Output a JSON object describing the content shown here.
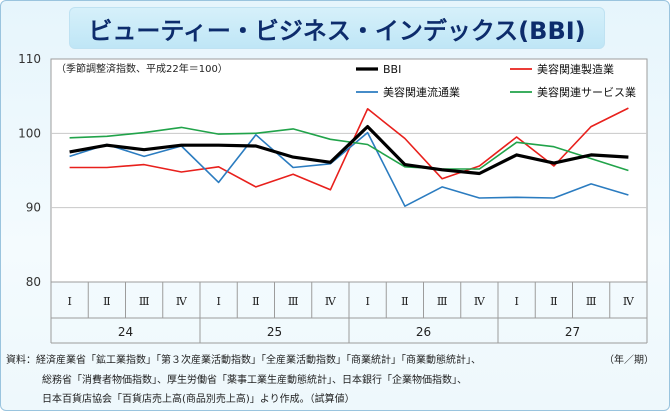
{
  "title": "ビューティー・ビジネス・インデックス(BBI)",
  "note": "（季節調整済指数、平成22年＝100）",
  "period_unit": "（年／期）",
  "source_lines": [
    "資料：経済産業省「鉱工業指数」「第３次産業活動指数」「全産業活動指数」「商業統計」「商業動態統計」、",
    "総務省「消費者物価指数」、厚生労働省「薬事工業生産動態統計」、日本銀行「企業物価指数」、",
    "日本百貨店協会「百貨店売上高(商品別売上高)」より作成。（試算値）"
  ],
  "chart_data": {
    "type": "line",
    "categories": [
      "Ⅰ",
      "Ⅱ",
      "Ⅲ",
      "Ⅳ",
      "Ⅰ",
      "Ⅱ",
      "Ⅲ",
      "Ⅳ",
      "Ⅰ",
      "Ⅱ",
      "Ⅲ",
      "Ⅳ",
      "Ⅰ",
      "Ⅱ",
      "Ⅲ",
      "Ⅳ"
    ],
    "years": [
      {
        "label": "24",
        "from": 0,
        "to": 3
      },
      {
        "label": "25",
        "from": 4,
        "to": 7
      },
      {
        "label": "26",
        "from": 8,
        "to": 11
      },
      {
        "label": "27",
        "from": 12,
        "to": 15
      }
    ],
    "ylim": [
      80,
      110
    ],
    "yticks": [
      80,
      90,
      100,
      110
    ],
    "grid": "horizontal",
    "series": [
      {
        "name": "BBI",
        "color": "#000000",
        "values": [
          97.5,
          98.4,
          97.8,
          98.4,
          98.4,
          98.3,
          96.8,
          96.1,
          100.9,
          95.8,
          95.1,
          94.6,
          97.1,
          96.0,
          97.1,
          96.8
        ]
      },
      {
        "name": "美容関連製造業",
        "color": "#e8201c",
        "values": [
          95.4,
          95.4,
          95.8,
          94.8,
          95.5,
          92.8,
          94.5,
          92.4,
          103.3,
          99.3,
          93.9,
          95.6,
          99.5,
          95.6,
          100.9,
          103.4
        ]
      },
      {
        "name": "美容関連流通業",
        "color": "#2b7cc0",
        "values": [
          96.9,
          98.5,
          96.9,
          98.3,
          93.4,
          99.8,
          95.4,
          95.9,
          100.1,
          90.2,
          92.8,
          91.3,
          91.4,
          91.3,
          93.2,
          91.7
        ]
      },
      {
        "name": "美容関連サービス業",
        "color": "#21a34a",
        "values": [
          99.4,
          99.6,
          100.1,
          100.8,
          99.9,
          100.0,
          100.6,
          99.2,
          98.5,
          95.5,
          95.2,
          95.2,
          98.8,
          98.2,
          96.6,
          95.0
        ]
      }
    ]
  }
}
